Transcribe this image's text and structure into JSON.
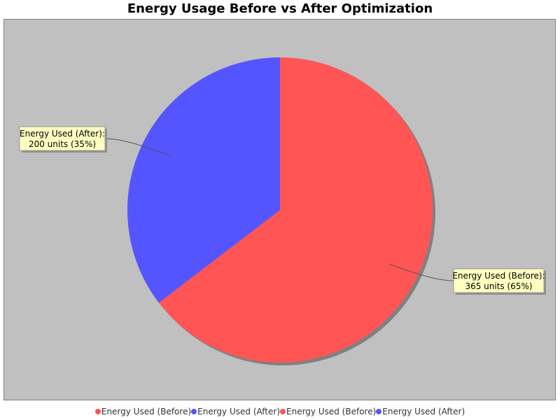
{
  "chart_data": {
    "type": "pie",
    "title": "Energy Usage Before vs After Optimization",
    "slices": [
      {
        "name": "Energy Used (Before)",
        "value": 365,
        "percent": 65,
        "color": "#ff5555",
        "label_line1": "Energy Used (Before):",
        "label_line2": "365 units (65%)"
      },
      {
        "name": "Energy Used (After)",
        "value": 200,
        "percent": 35,
        "color": "#5555ff",
        "label_line1": "Energy Used (After):",
        "label_line2": "200 units (35%)"
      }
    ],
    "legend": [
      {
        "label": "Energy Used (Before)",
        "color": "#ff5555"
      },
      {
        "label": "Energy Used (After)",
        "color": "#5555ff"
      },
      {
        "label": "Energy Used (Before)",
        "color": "#ff5555"
      },
      {
        "label": "Energy Used (After)",
        "color": "#5555ff"
      }
    ],
    "legend_position": "bottom",
    "background": "#c0c0c0",
    "label_box_color": "#ffffc0"
  }
}
